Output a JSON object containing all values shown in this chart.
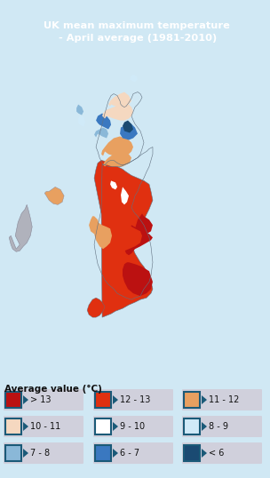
{
  "title_line1": "UK mean maximum temperature",
  "title_line2": " - April average (1981-2010)",
  "title_bg_color": "#4a4869",
  "title_text_color": "#ffffff",
  "background_color": "#d0e8f4",
  "legend_title": "Average value (°C)",
  "legend_items": [
    {
      "label": "> 13",
      "fill": "#bb1111",
      "border": "#1a5a78"
    },
    {
      "label": "12 - 13",
      "fill": "#e03010",
      "border": "#1a5a78"
    },
    {
      "label": "11 - 12",
      "fill": "#e8a060",
      "border": "#1a5a78"
    },
    {
      "label": "10 - 11",
      "fill": "#f5d8c0",
      "border": "#1a5a78"
    },
    {
      "label": "9 - 10",
      "fill": "#ffffff",
      "border": "#1a5a78"
    },
    {
      "label": "8 - 9",
      "fill": "#d0eaf8",
      "border": "#1a5a78"
    },
    {
      "label": "7 - 8",
      "fill": "#8ab8d8",
      "border": "#1a5a78"
    },
    {
      "label": "6 - 7",
      "fill": "#3a78c0",
      "border": "#1a5a78"
    },
    {
      "label": "< 6",
      "fill": "#1a4a72",
      "border": "#1a5a78"
    }
  ],
  "legend_bg_color": "#d8d8e4",
  "ireland_color": "#b0b2bc",
  "ireland_edge": "#888898",
  "sea_color": "#d0e8f4",
  "map_border_color": "#607080"
}
